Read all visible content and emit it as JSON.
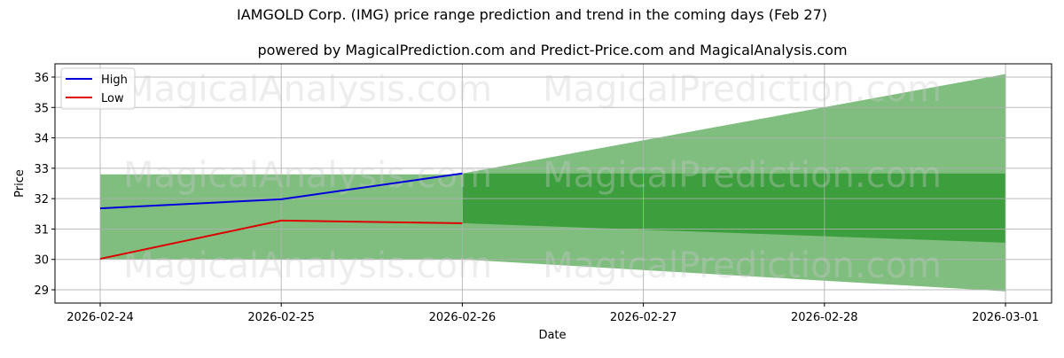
{
  "title": "IAMGOLD Corp. (IMG) price range prediction and trend in the coming days (Feb 27)",
  "subtitle": "powered by MagicalPrediction.com and Predict-Price.com and MagicalAnalysis.com",
  "watermarks": [
    "MagicalAnalysis.com",
    "MagicalPrediction.com"
  ],
  "colors": {
    "high": "#0000dd",
    "low": "#dd0000",
    "band_light": "#80be80",
    "band_dark": "#3c9e3c",
    "grid": "#b0b0b0"
  },
  "chart_data": {
    "type": "line",
    "title": "IAMGOLD Corp. (IMG) price range prediction and trend in the coming days (Feb 27)",
    "subtitle": "powered by MagicalPrediction.com and Predict-Price.com and MagicalAnalysis.com",
    "xlabel": "Date",
    "ylabel": "Price",
    "x_ticks": [
      "2026-02-24",
      "2026-02-25",
      "2026-02-26",
      "2026-02-27",
      "2026-02-28",
      "2026-03-01"
    ],
    "y_ticks": [
      29,
      30,
      31,
      32,
      33,
      34,
      35,
      36
    ],
    "ylim": [
      28.55,
      36.45
    ],
    "grid": true,
    "legend_position": "upper left",
    "legend": [
      "High",
      "Low"
    ],
    "series": [
      {
        "name": "High",
        "x": [
          "2026-02-24",
          "2026-02-25",
          "2026-02-26"
        ],
        "values": [
          31.68,
          31.98,
          32.83
        ],
        "color": "#0000dd"
      },
      {
        "name": "Low",
        "x": [
          "2026-02-24",
          "2026-02-25",
          "2026-02-26"
        ],
        "values": [
          30.02,
          31.28,
          31.19
        ],
        "color": "#dd0000"
      }
    ],
    "bands": [
      {
        "name": "historical range",
        "x": [
          "2026-02-24",
          "2026-02-26"
        ],
        "upper": [
          32.8,
          32.8
        ],
        "lower": [
          30.0,
          30.0
        ],
        "color": "#80be80"
      },
      {
        "name": "predicted outer range",
        "x": [
          "2026-02-26",
          "2026-03-01"
        ],
        "upper": [
          32.83,
          36.1
        ],
        "lower": [
          30.0,
          28.95
        ],
        "color": "#80be80"
      },
      {
        "name": "predicted inner range",
        "x": [
          "2026-02-26",
          "2026-03-01"
        ],
        "upper": [
          32.83,
          32.83
        ],
        "lower": [
          31.19,
          30.55
        ],
        "color": "#3c9e3c"
      }
    ]
  }
}
